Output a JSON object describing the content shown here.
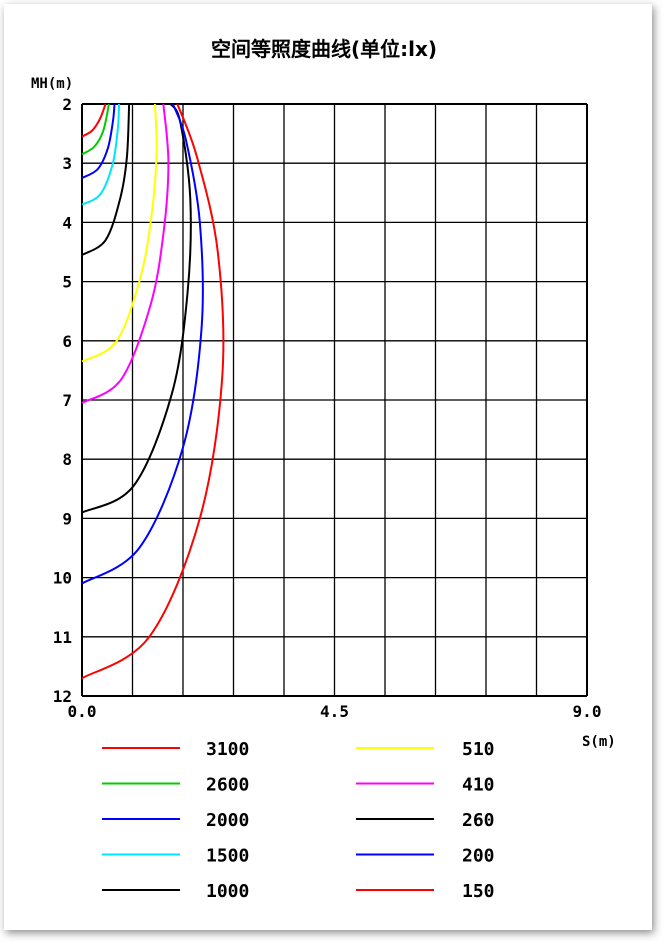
{
  "chart_data": {
    "type": "line",
    "title": "空间等照度曲线(单位:lx)",
    "ylabel": "MH(m)",
    "xlabel": "S(m)",
    "xlim": [
      0,
      9
    ],
    "ylim": [
      2,
      12
    ],
    "x_ticks": [
      "0.0",
      "4.5",
      "9.0"
    ],
    "y_ticks": [
      "2",
      "3",
      "4",
      "5",
      "6",
      "7",
      "8",
      "9",
      "10",
      "11",
      "12"
    ],
    "grid": true,
    "legend_position": "bottom",
    "series": [
      {
        "name": "3100",
        "color": "#ff0000",
        "points": [
          [
            0,
            2.55
          ],
          [
            0.18,
            2.45
          ],
          [
            0.32,
            2.25
          ],
          [
            0.42,
            2.0
          ]
        ]
      },
      {
        "name": "2600",
        "color": "#00cc00",
        "points": [
          [
            0,
            2.85
          ],
          [
            0.22,
            2.72
          ],
          [
            0.38,
            2.45
          ],
          [
            0.48,
            2.0
          ]
        ]
      },
      {
        "name": "2000",
        "color": "#0000ff",
        "points": [
          [
            0,
            3.25
          ],
          [
            0.28,
            3.1
          ],
          [
            0.46,
            2.75
          ],
          [
            0.55,
            2.3
          ],
          [
            0.58,
            2.0
          ]
        ]
      },
      {
        "name": "1500",
        "color": "#00e5ff",
        "points": [
          [
            0,
            3.7
          ],
          [
            0.33,
            3.52
          ],
          [
            0.55,
            3.0
          ],
          [
            0.64,
            2.4
          ],
          [
            0.66,
            2.0
          ]
        ]
      },
      {
        "name": "1000",
        "color": "#000000",
        "points": [
          [
            0,
            4.55
          ],
          [
            0.42,
            4.3
          ],
          [
            0.68,
            3.6
          ],
          [
            0.8,
            2.9
          ],
          [
            0.84,
            2.0
          ]
        ]
      },
      {
        "name": "510",
        "color": "#ffff00",
        "points": [
          [
            0,
            6.35
          ],
          [
            0.62,
            6.0
          ],
          [
            1.05,
            4.9
          ],
          [
            1.25,
            3.8
          ],
          [
            1.33,
            2.8
          ],
          [
            1.3,
            2.0
          ]
        ]
      },
      {
        "name": "410",
        "color": "#ff00ff",
        "points": [
          [
            0,
            7.05
          ],
          [
            0.7,
            6.65
          ],
          [
            1.22,
            5.4
          ],
          [
            1.45,
            4.2
          ],
          [
            1.54,
            3.0
          ],
          [
            1.45,
            2.0
          ]
        ]
      },
      {
        "name": "260",
        "color": "#000000",
        "points": [
          [
            0,
            8.9
          ],
          [
            0.92,
            8.45
          ],
          [
            1.6,
            6.9
          ],
          [
            1.88,
            5.2
          ],
          [
            1.93,
            3.6
          ],
          [
            1.75,
            2.3
          ],
          [
            1.58,
            2.0
          ]
        ]
      },
      {
        "name": "200",
        "color": "#0000ff",
        "points": [
          [
            0,
            10.1
          ],
          [
            1.02,
            9.5
          ],
          [
            1.8,
            7.8
          ],
          [
            2.13,
            5.8
          ],
          [
            2.1,
            4.0
          ],
          [
            1.85,
            2.6
          ],
          [
            1.62,
            2.0
          ]
        ]
      },
      {
        "name": "150",
        "color": "#ff0000",
        "points": [
          [
            0,
            11.7
          ],
          [
            1.2,
            11.0
          ],
          [
            2.1,
            9.0
          ],
          [
            2.5,
            6.6
          ],
          [
            2.42,
            4.5
          ],
          [
            2.05,
            2.9
          ],
          [
            1.7,
            2.0
          ]
        ]
      }
    ]
  }
}
